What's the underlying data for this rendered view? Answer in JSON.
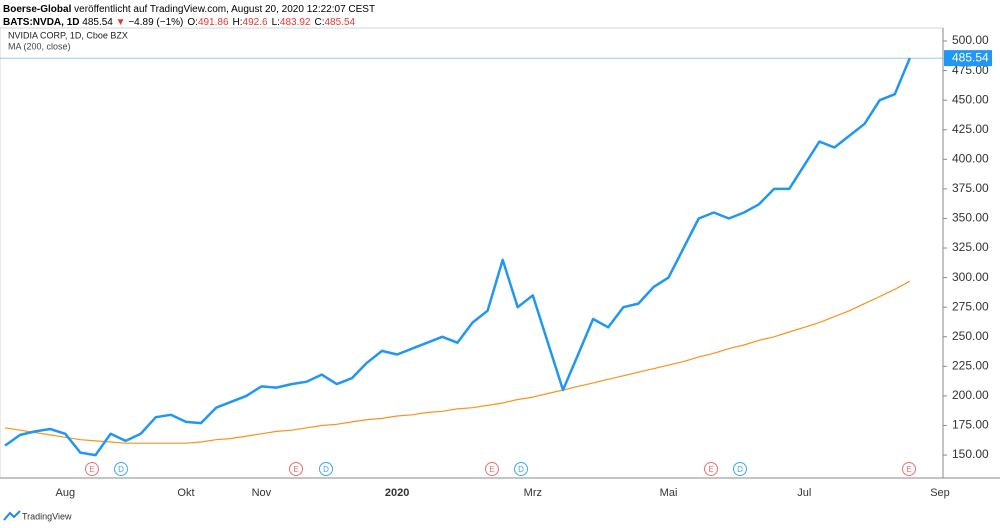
{
  "header": {
    "publisher": "Boerse-Global",
    "published": "veröffentlicht auf TradingView.com, August 20, 2020 12:22:07 CEST",
    "symbol": "BATS:NVDA, 1D",
    "price": 485.54,
    "arrow": "▼",
    "change": "−4.89 (−1%)",
    "ohlc": [
      {
        "label": "O:",
        "value": 491.86
      },
      {
        "label": "H:",
        "value": 492.6
      },
      {
        "label": "L:",
        "value": 483.92
      },
      {
        "label": "C:",
        "value": 485.54
      }
    ]
  },
  "legend": {
    "instrument": "NVIDIA CORP, 1D, Cboe BZX",
    "indicator": "MA (200, close)"
  },
  "footer": {
    "brand": "TradingView"
  },
  "chart_data": {
    "type": "line",
    "categories": [
      null,
      null,
      null,
      null,
      "Aug",
      null,
      null,
      null,
      null,
      null,
      null,
      null,
      "Okt",
      null,
      null,
      null,
      null,
      "Nov",
      null,
      null,
      null,
      null,
      null,
      null,
      null,
      null,
      "2020",
      null,
      null,
      null,
      null,
      null,
      null,
      null,
      null,
      "Mrz",
      null,
      null,
      null,
      null,
      null,
      null,
      null,
      null,
      "Mai",
      null,
      null,
      null,
      null,
      null,
      null,
      null,
      null,
      "Jul",
      null,
      null,
      null,
      null,
      null,
      null,
      null,
      null,
      "Sep"
    ],
    "series": [
      {
        "name": "NVIDIA CORP, 1D, Cboe BZX",
        "color": "#2196f3",
        "values": [
          158,
          167,
          170,
          172,
          168,
          152,
          150,
          168,
          162,
          168,
          182,
          184,
          178,
          177,
          190,
          195,
          200,
          208,
          207,
          210,
          212,
          218,
          210,
          215,
          228,
          238,
          235,
          240,
          245,
          250,
          245,
          262,
          272,
          315,
          275,
          285,
          245,
          205,
          235,
          265,
          258,
          275,
          278,
          292,
          300,
          325,
          350,
          355,
          350,
          355,
          362,
          375,
          375,
          395,
          415,
          410,
          420,
          430,
          450,
          455,
          485.54,
          null,
          null
        ]
      },
      {
        "name": "MA (200, close)",
        "color": "#f7931e",
        "values": [
          173,
          171,
          169,
          167,
          165,
          163,
          162,
          161,
          160,
          160,
          160,
          160,
          160,
          161,
          163,
          164,
          166,
          168,
          170,
          171,
          173,
          175,
          176,
          178,
          180,
          181,
          183,
          184,
          186,
          187,
          189,
          190,
          192,
          194,
          197,
          199,
          202,
          205,
          208,
          211,
          214,
          217,
          220,
          223,
          226,
          229,
          233,
          236,
          240,
          243,
          247,
          250,
          254,
          258,
          262,
          267,
          272,
          278,
          284,
          290,
          297,
          null,
          null
        ]
      }
    ],
    "last_price": 485.54,
    "events": [
      "E",
      "D",
      "E",
      "D",
      "E",
      "D",
      "E",
      "D",
      "E"
    ],
    "ylim": [
      130.6,
      511
    ],
    "yticks": [
      {
        "value": 150,
        "label": "150.00"
      },
      {
        "value": 175,
        "label": "175.00"
      },
      {
        "value": 200,
        "label": "200.00"
      },
      {
        "value": 225,
        "label": "225.00"
      },
      {
        "value": 250,
        "label": "250.00"
      },
      {
        "value": 275,
        "label": "275.00"
      },
      {
        "value": 300,
        "label": "300.00"
      },
      {
        "value": 325,
        "label": "325.00"
      },
      {
        "value": 350,
        "label": "350.00"
      },
      {
        "value": 375,
        "label": "375.00"
      },
      {
        "value": 400,
        "label": "400.00"
      },
      {
        "value": 425,
        "label": "425.00"
      },
      {
        "value": 450,
        "label": "450.00"
      },
      {
        "value": 475,
        "label": "475.00"
      },
      {
        "value": 500,
        "label": "500.00"
      }
    ]
  }
}
